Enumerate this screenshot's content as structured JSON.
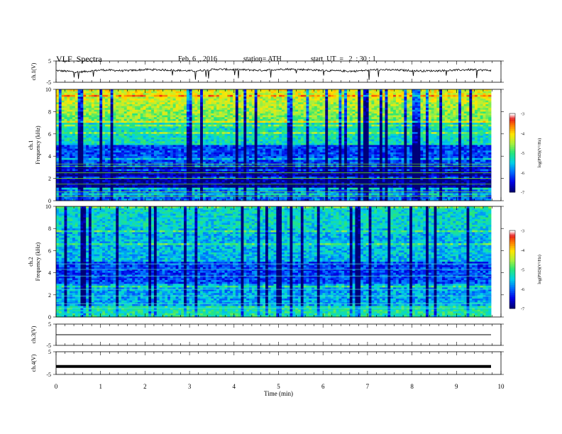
{
  "header": {
    "title": "VLF  Spectra",
    "date": "Feb. 6  , 2016",
    "station": "station= ATH",
    "start": "start  UT  =   2  : 30 : 1"
  },
  "chart_data": [
    {
      "type": "line",
      "panel": "ch1-waveform",
      "ylabel": "ch.1(V)",
      "ylim": [
        -5,
        5
      ],
      "yticks": [
        "5",
        "-5"
      ],
      "xlim": [
        0,
        10
      ],
      "series": [
        {
          "values": [
            0.5,
            -0.2,
            0.8,
            0.4,
            1.0,
            0.7,
            0.3,
            1.1,
            0.9,
            0.6,
            1.2,
            0.9,
            0.4,
            0.2,
            0.9,
            0.7,
            0.3,
            0.5,
            0.9,
            0.6
          ]
        }
      ]
    },
    {
      "type": "heatmap",
      "panel": "ch1-spectrogram",
      "ylabel": "ch.1\nFrequency  (kHz)",
      "ylim": [
        0,
        10
      ],
      "yticks": [
        "0",
        "2",
        "4",
        "6",
        "8",
        "10"
      ],
      "xlim": [
        0,
        10
      ],
      "colorbar": {
        "label": "log(PSD)(V²/Hz)",
        "range": [
          -7,
          -3
        ],
        "ticks": [
          "-3",
          "-4",
          "-5",
          "-6",
          "-7"
        ]
      }
    },
    {
      "type": "heatmap",
      "panel": "ch2-spectrogram",
      "ylabel": "ch.2\nFrequency  (kHz)",
      "ylim": [
        0,
        10
      ],
      "yticks": [
        "0",
        "2",
        "4",
        "6",
        "8",
        "10"
      ],
      "xlim": [
        0,
        10
      ],
      "colorbar": {
        "label": "log(PSD)(V²/Hz)",
        "range": [
          -7,
          -3
        ],
        "ticks": [
          "-3",
          "-4",
          "-5",
          "-6",
          "-7"
        ]
      }
    },
    {
      "type": "line",
      "panel": "ch3-waveform",
      "ylabel": "ch.3(V)",
      "ylim": [
        -5,
        5
      ],
      "yticks": [
        "5",
        "-5"
      ],
      "xlim": [
        0,
        10
      ],
      "series": [
        {
          "values": [
            0,
            0
          ]
        }
      ]
    },
    {
      "type": "line",
      "panel": "ch4-waveform",
      "ylabel": "ch.4(V)",
      "ylim": [
        -5,
        5
      ],
      "yticks": [
        "5",
        "-5"
      ],
      "xlim": [
        0,
        10
      ],
      "xlabel": "Time  (min)",
      "xticks": [
        "0",
        "1",
        "2",
        "3",
        "4",
        "5",
        "6",
        "7",
        "8",
        "9",
        "10"
      ],
      "series": [
        {
          "values": [
            -1.5,
            -1.5
          ]
        }
      ]
    }
  ]
}
